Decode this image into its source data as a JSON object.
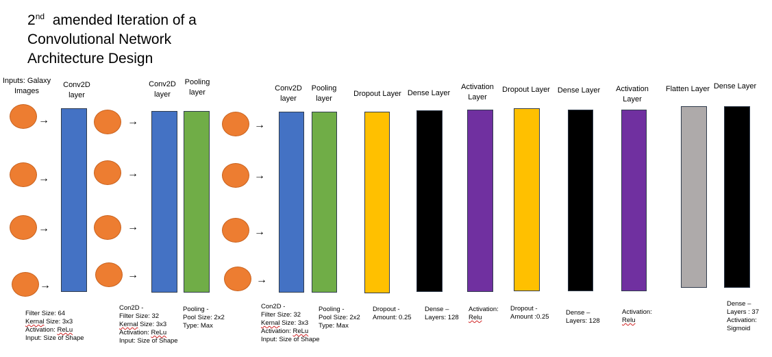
{
  "title": {
    "line1_prefix": "2",
    "line1_sup": "nd",
    "line1_rest": "  amended Iteration of a",
    "line2": "Convolutional Network",
    "line3": "Architecture Design"
  },
  "colors": {
    "input": "#ed7d31",
    "conv": "#4472c4",
    "pool": "#70ad47",
    "dropout": "#ffc000",
    "dense": "#000000",
    "activation": "#7030a0",
    "flatten": "#aeaaaa"
  },
  "arrow_glyph": "→",
  "headers": {
    "inputs": [
      "Inputs: Galaxy",
      "Images"
    ],
    "conv1": [
      "Conv2D",
      "layer"
    ],
    "conv2": [
      "Conv2D",
      "layer"
    ],
    "pool1": [
      "Pooling",
      "layer"
    ],
    "conv3": [
      "Conv2D",
      "layer"
    ],
    "pool2": [
      "Pooling",
      "layer"
    ],
    "dropout1": [
      "Dropout Layer"
    ],
    "dense1": [
      "Dense Layer"
    ],
    "activation1": [
      "Activation",
      "Layer"
    ],
    "dropout2": [
      "Dropout Layer"
    ],
    "dense2": [
      "Dense Layer"
    ],
    "activation2": [
      "Activation",
      "Layer"
    ],
    "flatten": [
      "Flatten Layer"
    ],
    "dense3": [
      "Dense Layer"
    ]
  },
  "captions": {
    "conv1": [
      "Filter Size: 64",
      "Kernal Size: 3x3",
      "Activation: ReLu",
      "Input: Size of Shape"
    ],
    "conv2": [
      "Con2D -",
      "Filter Size: 32",
      "Kernal Size: 3x3",
      "Activation: ReLu",
      "Input: Size of Shape"
    ],
    "pool1": [
      "Pooling -",
      "Pool Size: 2x2",
      "Type: Max"
    ],
    "conv3": [
      "Con2D -",
      "Filter Size: 32",
      "Kernal Size: 3x3",
      "Activation: ReLu",
      "Input: Size of Shape"
    ],
    "pool2": [
      "Pooling -",
      "Pool Size: 2x2",
      "Type: Max"
    ],
    "dropout1": [
      "Dropout -",
      "Amount: 0.25"
    ],
    "dense1": [
      "Dense –",
      "Layers: 128"
    ],
    "activation1": [
      "Activation:",
      "Relu"
    ],
    "dropout2": [
      "Dropout -",
      "Amount :0.25"
    ],
    "dense2": [
      "Dense –",
      "Layers: 128"
    ],
    "activation2": [
      "Activation:",
      "Relu"
    ],
    "dense3": [
      "Dense –",
      "Layers : 37",
      "Activation:",
      "Sigmoid"
    ]
  }
}
